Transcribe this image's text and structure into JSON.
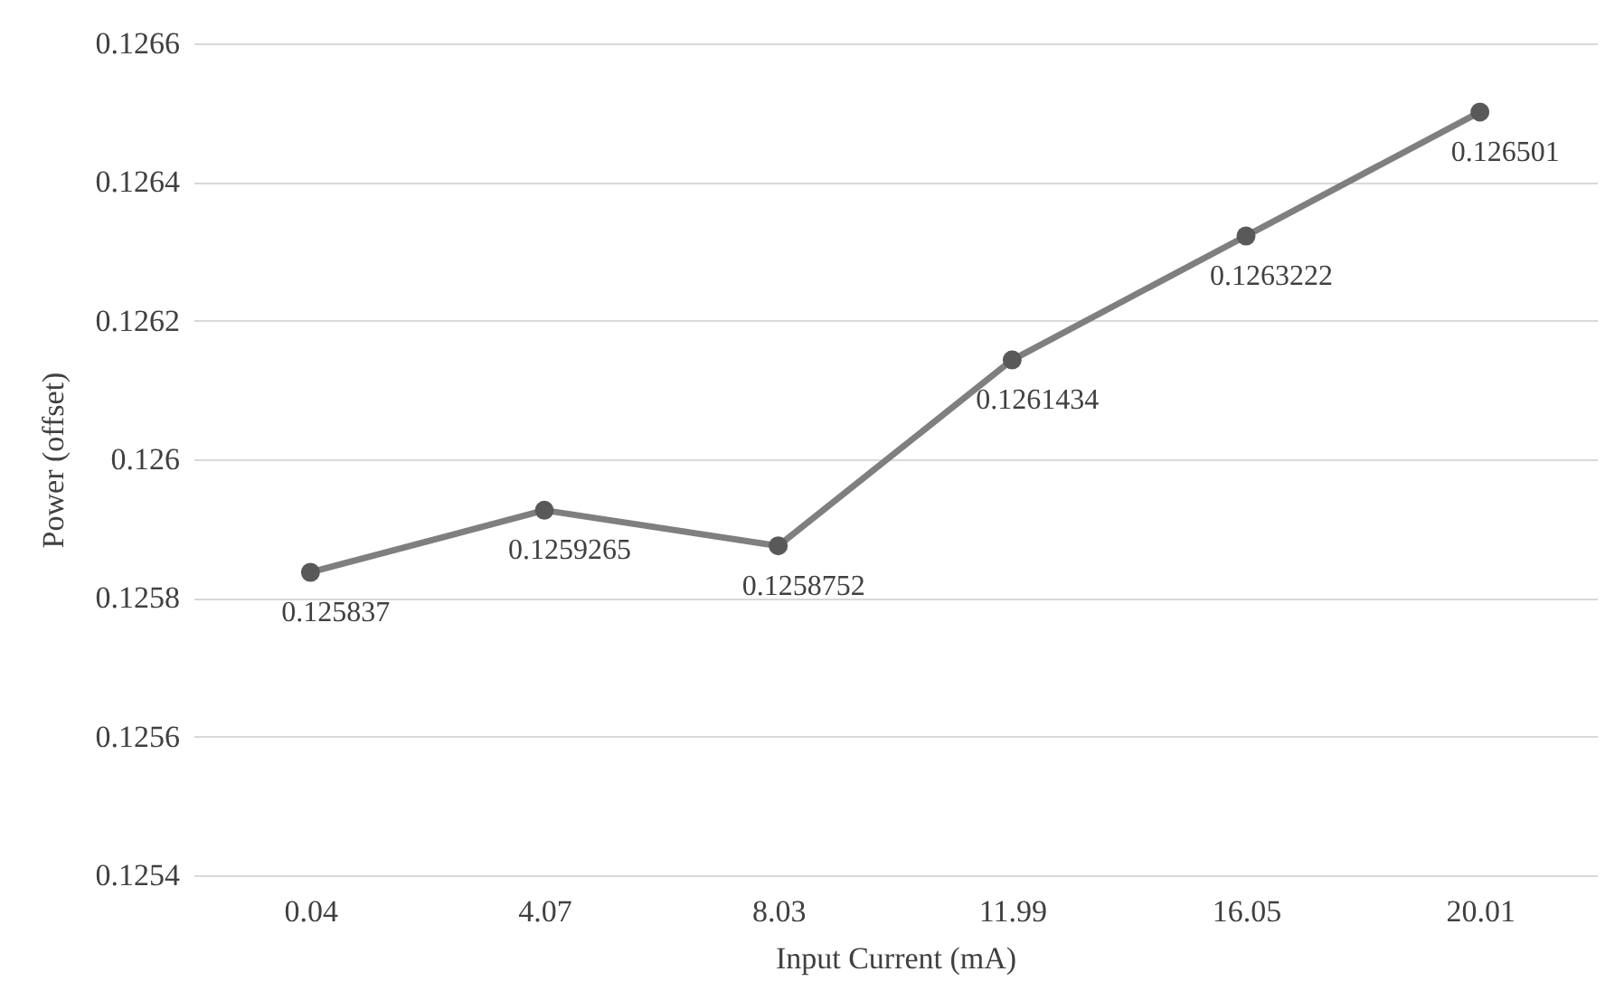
{
  "chart_data": {
    "type": "line",
    "xlabel": "Input Current (mA)",
    "ylabel": "Power (offset)",
    "categories": [
      "0.04",
      "4.07",
      "8.03",
      "11.99",
      "16.05",
      "20.01"
    ],
    "series": [
      {
        "color": "#7f7f7f",
        "values": [
          0.125837,
          0.1259265,
          0.1258752,
          0.1261434,
          0.1263222,
          0.126501
        ]
      }
    ],
    "ylim": [
      0.1254,
      0.1266
    ],
    "yticks": [
      0.1254,
      0.1256,
      0.1258,
      0.126,
      0.1262,
      0.1264,
      0.1266
    ],
    "grid": "y",
    "marker": "circle",
    "line_style": "solid",
    "data_labels": true
  }
}
